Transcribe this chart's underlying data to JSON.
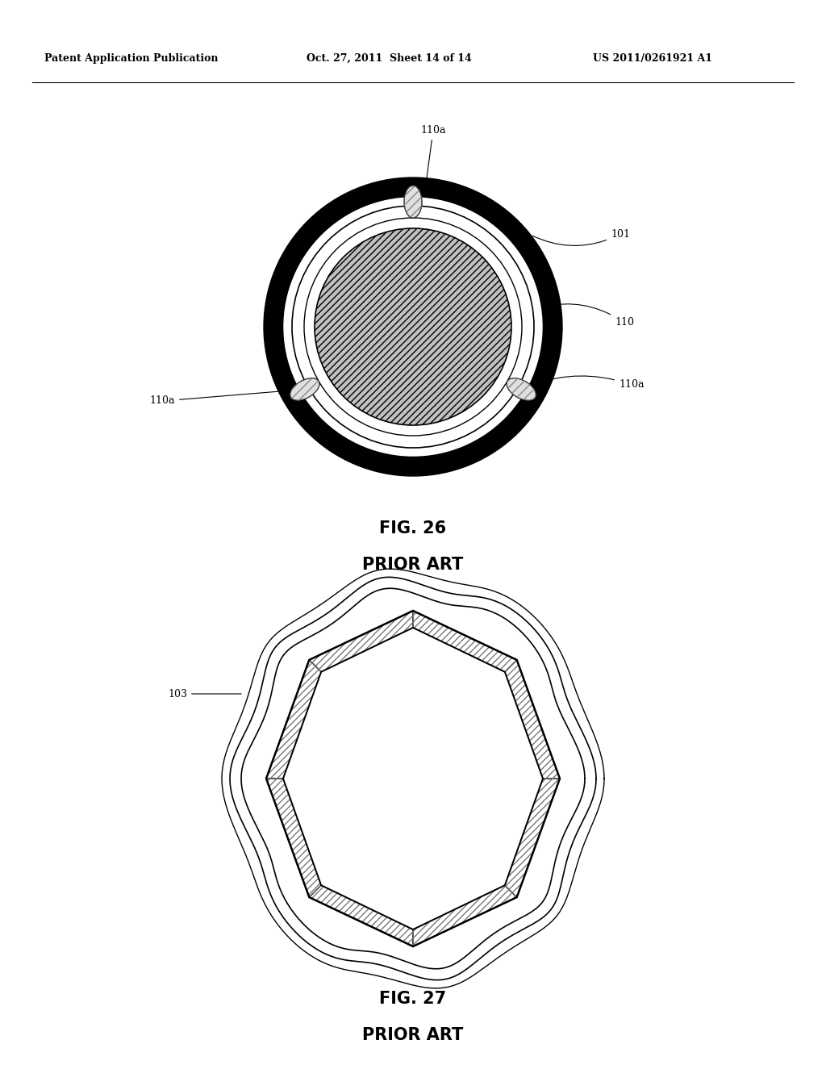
{
  "header_left": "Patent Application Publication",
  "header_mid": "Oct. 27, 2011  Sheet 14 of 14",
  "header_right": "US 2011/0261921 A1",
  "fig26_title": "FIG. 26",
  "fig26_subtitle": "PRIOR ART",
  "fig27_title": "FIG. 27",
  "fig27_subtitle": "PRIOR ART",
  "label_110a_top": "110a",
  "label_101": "101",
  "label_110": "110",
  "label_110a_right": "110a",
  "label_110a_left": "110a",
  "label_103": "103",
  "background_color": "#ffffff"
}
